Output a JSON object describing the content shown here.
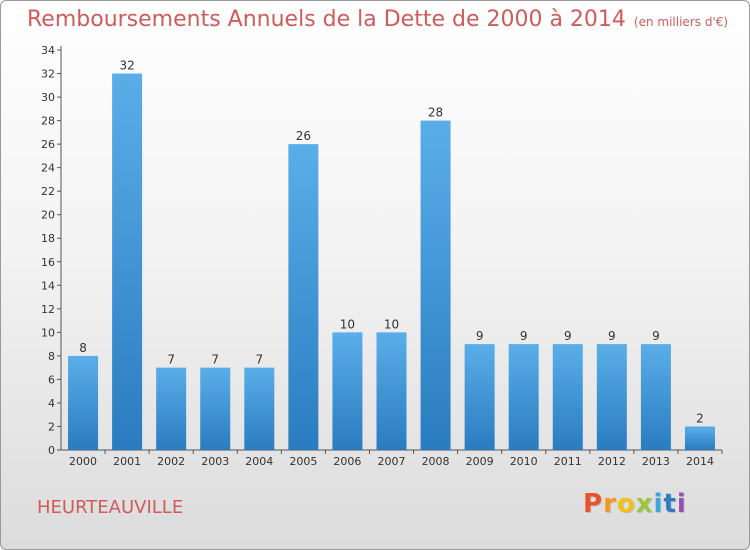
{
  "header": {
    "title": "Remboursements Annuels de la Dette de 2000 à 2014",
    "unit": "(en milliers d'€)"
  },
  "commune": "HEURTEAUVILLE",
  "logo": {
    "letters": [
      "P",
      "r",
      "o",
      "x",
      "i",
      "t",
      "i"
    ],
    "colors": [
      "#e8522b",
      "#f39a1e",
      "#f3c018",
      "#9bc53d",
      "#3aa6dd",
      "#2d7cc1",
      "#9a4fb0"
    ]
  },
  "colors": {
    "bar": "#3a95d8",
    "bar_dark": "#2277b8",
    "title": "#cf5b5b"
  },
  "chart_data": {
    "type": "bar",
    "categories": [
      "2000",
      "2001",
      "2002",
      "2003",
      "2004",
      "2005",
      "2006",
      "2007",
      "2008",
      "2009",
      "2010",
      "2011",
      "2012",
      "2013",
      "2014"
    ],
    "values": [
      8,
      32,
      7,
      7,
      7,
      26,
      10,
      10,
      28,
      9,
      9,
      9,
      9,
      9,
      2
    ],
    "value_labels": [
      "8",
      "32",
      "7",
      "7",
      "7",
      "26",
      "10",
      "10",
      "28",
      "9",
      "9",
      "9",
      "9",
      "9",
      "2"
    ],
    "ylim": [
      0,
      34
    ],
    "yticks": [
      0,
      2,
      4,
      6,
      8,
      10,
      12,
      14,
      16,
      18,
      20,
      22,
      24,
      26,
      28,
      30,
      32,
      34
    ],
    "ytick_labels": [
      "0",
      "2",
      "4",
      "6",
      "8",
      "10",
      "12",
      "14",
      "16",
      "18",
      "20",
      "22",
      "24",
      "26",
      "28",
      "30",
      "32",
      "34"
    ],
    "grid": false,
    "legend": "none"
  }
}
